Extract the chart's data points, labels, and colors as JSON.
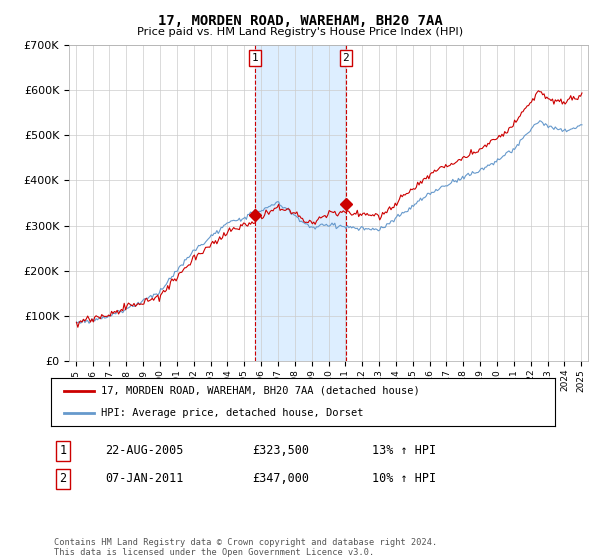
{
  "title": "17, MORDEN ROAD, WAREHAM, BH20 7AA",
  "subtitle": "Price paid vs. HM Land Registry's House Price Index (HPI)",
  "legend_line1": "17, MORDEN ROAD, WAREHAM, BH20 7AA (detached house)",
  "legend_line2": "HPI: Average price, detached house, Dorset",
  "transaction1_date": "22-AUG-2005",
  "transaction1_price": "£323,500",
  "transaction1_hpi": "13% ↑ HPI",
  "transaction1_year": 2005.64,
  "transaction1_value": 323500,
  "transaction2_date": "07-JAN-2011",
  "transaction2_price": "£347,000",
  "transaction2_hpi": "10% ↑ HPI",
  "transaction2_year": 2011.02,
  "transaction2_value": 347000,
  "footer": "Contains HM Land Registry data © Crown copyright and database right 2024.\nThis data is licensed under the Open Government Licence v3.0.",
  "line_color_red": "#cc0000",
  "line_color_blue": "#6699cc",
  "shade_color": "#ddeeff",
  "ylim_min": 0,
  "ylim_max": 700000,
  "background_color": "#ffffff",
  "grid_color": "#cccccc"
}
